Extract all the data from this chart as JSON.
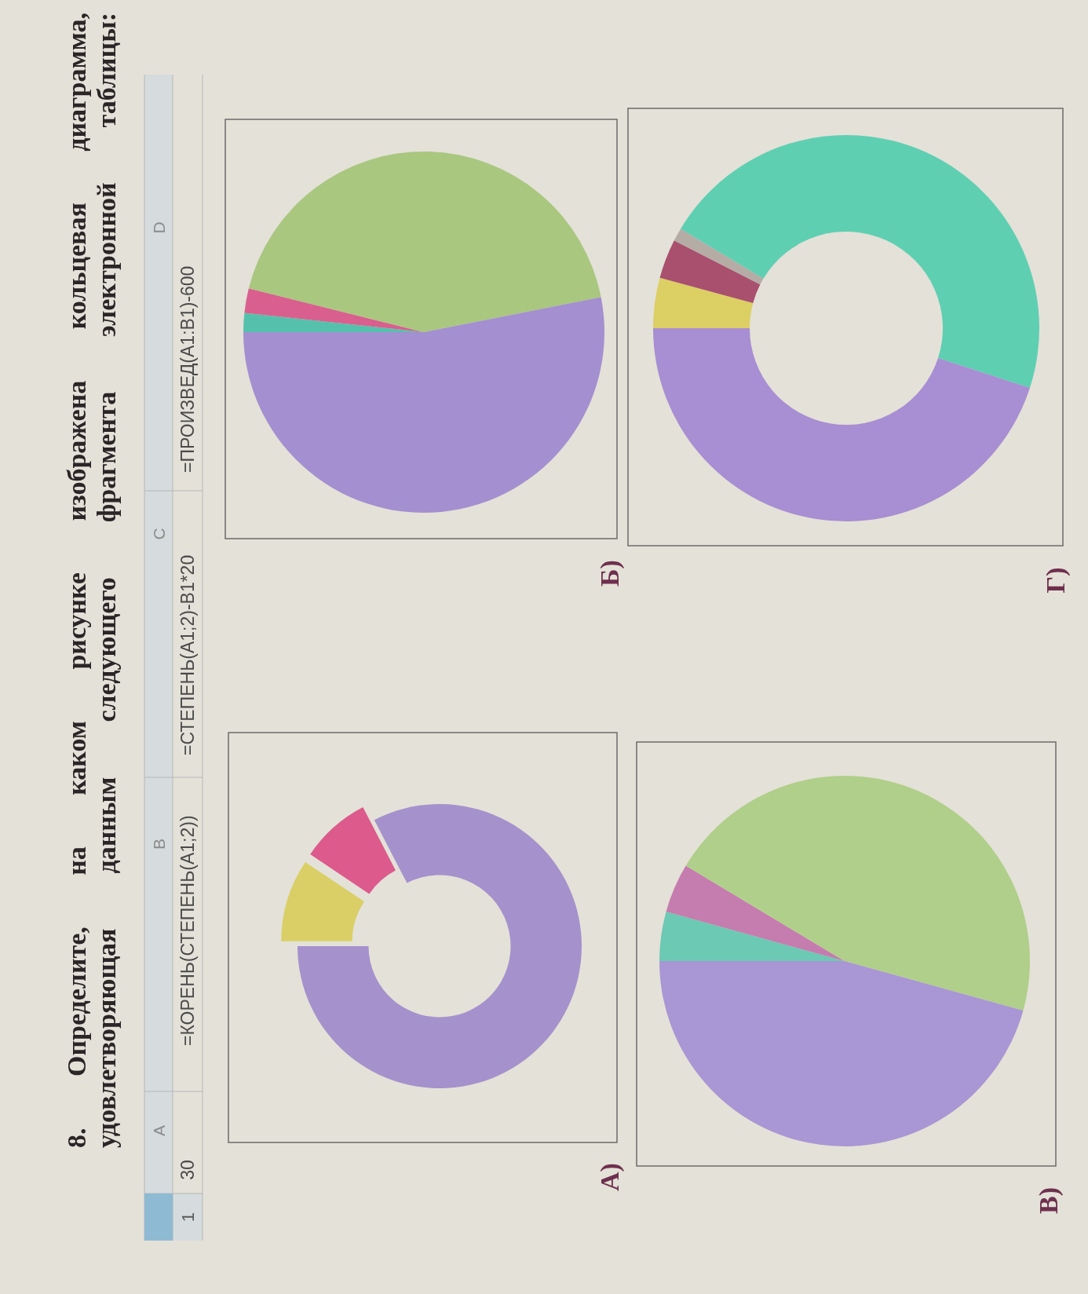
{
  "chart_data": [
    {
      "type": "other",
      "title": "8. Определите, на каком рисунке изображена кольцевая диаграмма, удовлетворяющая данным следующего фрагмента электронной таблицы:",
      "annotations": [
        "A",
        "B",
        "C",
        "D",
        "1",
        "30",
        "=КОРЕНЬ(СТЕПЕНЬ(A1;2))",
        "=СТЕПЕНЬ(A1;2)-B1*20",
        "=ПРОИЗВЕД(A1:B1)-600"
      ]
    },
    {
      "type": "donut",
      "title": "А)",
      "categories": [
        null,
        null,
        null
      ],
      "values": [
        9.4,
        8.0,
        82.6
      ],
      "colors": [
        "#d9cf66",
        "#dc5a8c",
        "#a591cc"
      ]
    },
    {
      "type": "pie",
      "title": "Б)",
      "categories": [
        null,
        null,
        null,
        null
      ],
      "values": [
        1.7,
        2.2,
        43.0,
        53.1
      ],
      "colors": [
        "#55c1ad",
        "#d9608e",
        "#a9c77f",
        "#a48fd0"
      ]
    },
    {
      "type": "pie",
      "title": "В)",
      "categories": [
        null,
        null,
        null,
        null
      ],
      "values": [
        4.3,
        4.3,
        45.7,
        45.7
      ],
      "colors": [
        "#6cc9b4",
        "#c57cae",
        "#b0cf8a",
        "#a996d4"
      ]
    },
    {
      "type": "donut",
      "title": "Г)",
      "categories": [
        null,
        null,
        null,
        null,
        null
      ],
      "values": [
        4.2,
        3.3,
        1.1,
        46.4,
        45.0
      ],
      "colors": [
        "#dccf63",
        "#a9506e",
        "#b5aca6",
        "#5fcfb2",
        "#a88ed2"
      ]
    }
  ]
}
